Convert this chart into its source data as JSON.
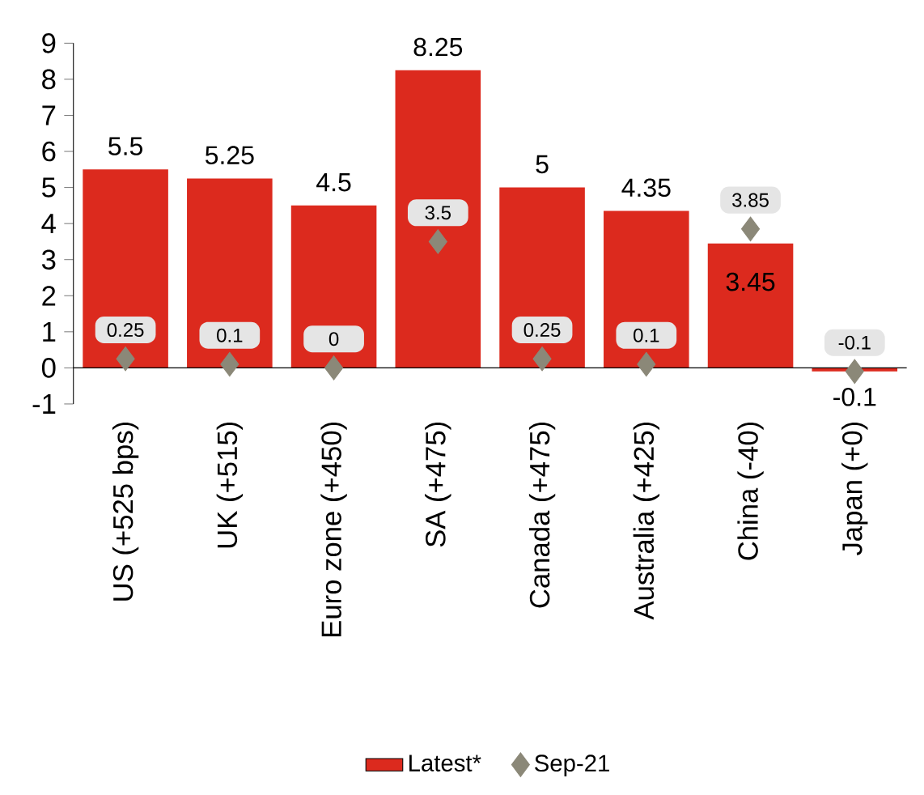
{
  "chart_data": {
    "type": "bar",
    "categories": [
      "US (+525 bps)",
      "UK (+515)",
      "Euro zone (+450)",
      "SA (+475)",
      "Canada (+475)",
      "Australia (+425)",
      "China (-40)",
      "Japan (+0)"
    ],
    "series": [
      {
        "name": "Latest*",
        "color": "#dc2a1e",
        "values": [
          5.5,
          5.25,
          4.5,
          8.25,
          5,
          4.35,
          3.45,
          -0.1
        ]
      },
      {
        "name": "Sep-21",
        "type": "scatter",
        "marker": "diamond",
        "color": "#8b8878",
        "values": [
          0.25,
          0.1,
          0,
          3.5,
          0.25,
          0.1,
          3.85,
          -0.1
        ]
      }
    ],
    "ylim": [
      -1,
      9
    ],
    "yticks": [
      -1,
      0,
      1,
      2,
      3,
      4,
      5,
      6,
      7,
      8,
      9
    ],
    "grid": false,
    "legend": "bottom",
    "data_labels": true
  }
}
